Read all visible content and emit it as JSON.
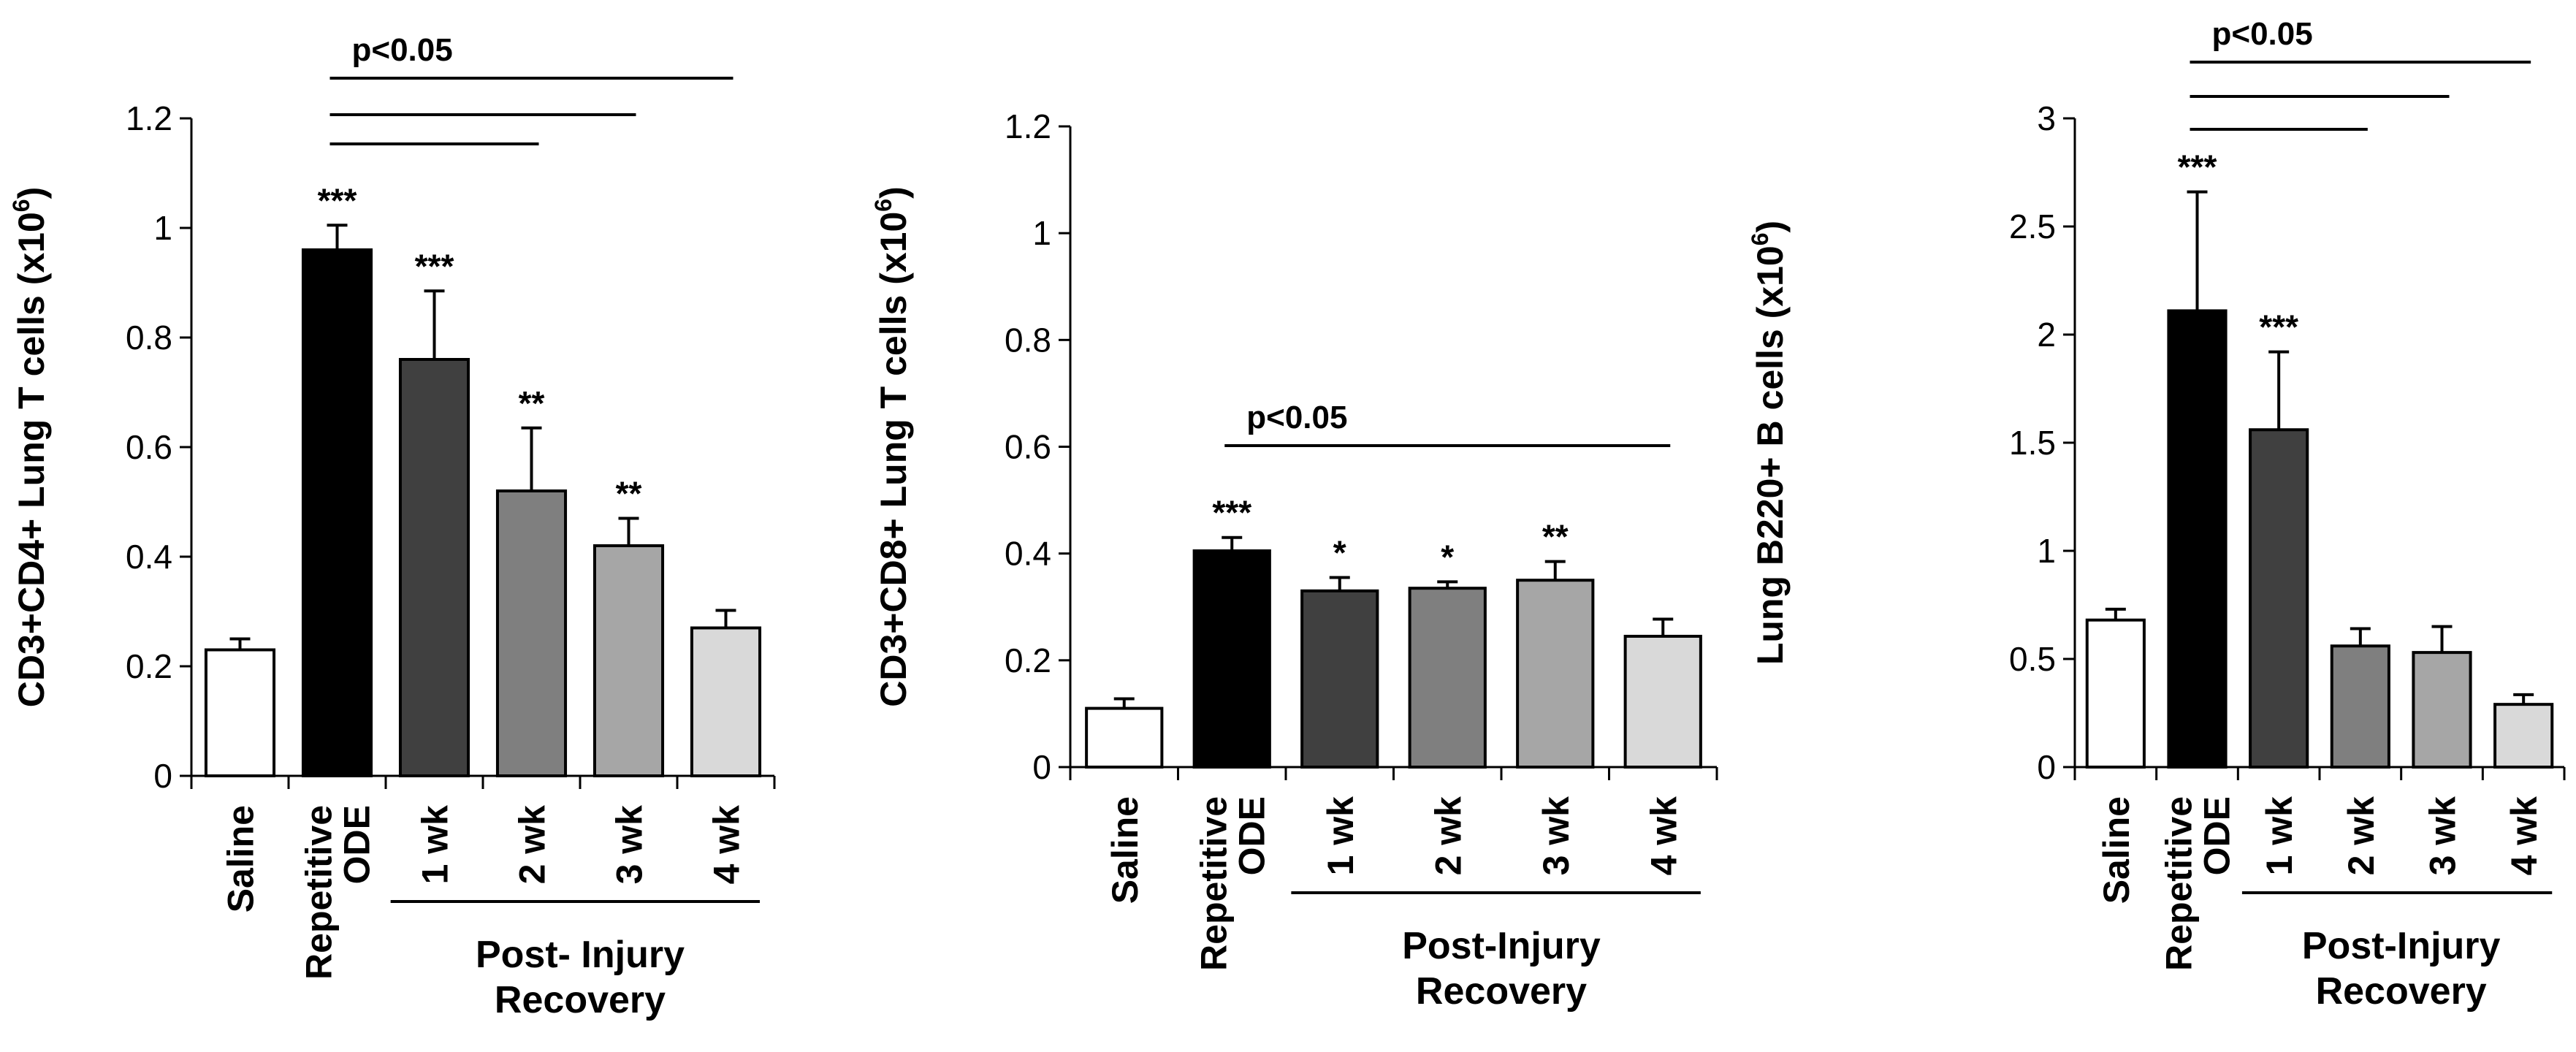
{
  "colors": {
    "axis": "#000000",
    "saline": "#ffffff",
    "ode": "#000000",
    "wk1": "#404040",
    "wk2": "#7f7f7f",
    "wk3": "#a6a6a6",
    "wk4": "#d9d9d9"
  },
  "chart_data": [
    {
      "type": "bar",
      "ylabel_main": "CD3+CD4+ Lung T cells (x10",
      "ylabel_exp": "6",
      "ylabel_close": ")",
      "ylim": [
        0,
        1.2
      ],
      "yticks": [
        "0",
        "0.2",
        "0.4",
        "0.6",
        "0.8",
        "1",
        "1.2"
      ],
      "categories": [
        "Saline",
        "Repetitive ODE",
        "1 wk",
        "2 wk",
        "3 wk",
        "4 wk"
      ],
      "category_lines": [
        [
          "Saline"
        ],
        [
          "Repetitive",
          "ODE"
        ],
        [
          "1 wk"
        ],
        [
          "2 wk"
        ],
        [
          "3 wk"
        ],
        [
          "4 wk"
        ]
      ],
      "values": [
        0.23,
        0.96,
        0.76,
        0.52,
        0.42,
        0.27
      ],
      "errors": [
        0.02,
        0.045,
        0.125,
        0.115,
        0.05,
        0.032
      ],
      "significance": [
        "",
        "***",
        "***",
        "**",
        "**",
        ""
      ],
      "pvalue_label": "p<0.05",
      "brackets": [
        {
          "from": 1,
          "to": 3
        },
        {
          "from": 1,
          "to": 4
        },
        {
          "from": 1,
          "to": 5
        }
      ],
      "group_label": [
        "Post- Injury",
        "Recovery"
      ]
    },
    {
      "type": "bar",
      "ylabel_main": "CD3+CD8+ Lung T cells (x10",
      "ylabel_exp": "6",
      "ylabel_close": ")",
      "ylim": [
        0,
        1.2
      ],
      "yticks": [
        "0",
        "0.2",
        "0.4",
        "0.6",
        "0.8",
        "1",
        "1.2"
      ],
      "categories": [
        "Saline",
        "Repetitive ODE",
        "1 wk",
        "2 wk",
        "3 wk",
        "4 wk"
      ],
      "category_lines": [
        [
          "Saline"
        ],
        [
          "Repetitive",
          "ODE"
        ],
        [
          "1 wk"
        ],
        [
          "2 wk"
        ],
        [
          "3 wk"
        ],
        [
          "4 wk"
        ]
      ],
      "values": [
        0.11,
        0.405,
        0.33,
        0.335,
        0.35,
        0.245
      ],
      "errors": [
        0.018,
        0.025,
        0.025,
        0.012,
        0.035,
        0.032
      ],
      "significance": [
        "",
        "***",
        "*",
        "*",
        "**",
        ""
      ],
      "pvalue_label": "p<0.05",
      "brackets": [
        {
          "from": 1,
          "to": 5
        }
      ],
      "group_label": [
        "Post-Injury",
        "Recovery"
      ]
    },
    {
      "type": "bar",
      "ylabel_main": "Lung B220+ B cells (x10",
      "ylabel_exp": "6",
      "ylabel_close": ")",
      "ylim": [
        0,
        3
      ],
      "yticks": [
        "0",
        "0.5",
        "1",
        "1.5",
        "2",
        "2.5",
        "3"
      ],
      "categories": [
        "Saline",
        "Repetitive ODE",
        "1 wk",
        "2 wk",
        "3 wk",
        "4 wk"
      ],
      "category_lines": [
        [
          "Saline"
        ],
        [
          "Repetitive",
          "ODE"
        ],
        [
          "1 wk"
        ],
        [
          "2 wk"
        ],
        [
          "3 wk"
        ],
        [
          "4 wk"
        ]
      ],
      "values": [
        0.68,
        2.11,
        1.56,
        0.56,
        0.53,
        0.29
      ],
      "errors": [
        0.05,
        0.55,
        0.36,
        0.08,
        0.12,
        0.045
      ],
      "significance": [
        "",
        "***",
        "***",
        "",
        "",
        ""
      ],
      "pvalue_label": "p<0.05",
      "brackets": [
        {
          "from": 1,
          "to": 3
        },
        {
          "from": 1,
          "to": 4
        },
        {
          "from": 1,
          "to": 5
        }
      ],
      "group_label": [
        "Post-Injury",
        "Recovery"
      ]
    }
  ]
}
